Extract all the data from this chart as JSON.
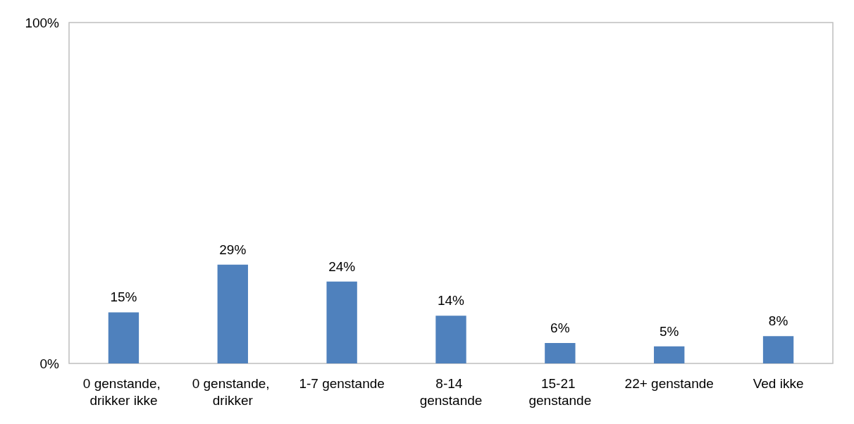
{
  "chart_data": {
    "type": "bar",
    "categories": [
      "0 genstande, drikker ikke",
      "0 genstande, drikker",
      "1-7 genstande",
      "8-14 genstande",
      "15-21 genstande",
      "22+ genstande",
      "Ved ikke"
    ],
    "values": [
      15,
      29,
      24,
      14,
      6,
      5,
      8
    ],
    "value_labels": [
      "15%",
      "29%",
      "24%",
      "14%",
      "6%",
      "5%",
      "8%"
    ],
    "color": "#4f81bd",
    "ylim": [
      0,
      100
    ],
    "yticks": [
      {
        "value": 0,
        "label": "0%"
      },
      {
        "value": 100,
        "label": "100%"
      }
    ],
    "grid": false
  }
}
